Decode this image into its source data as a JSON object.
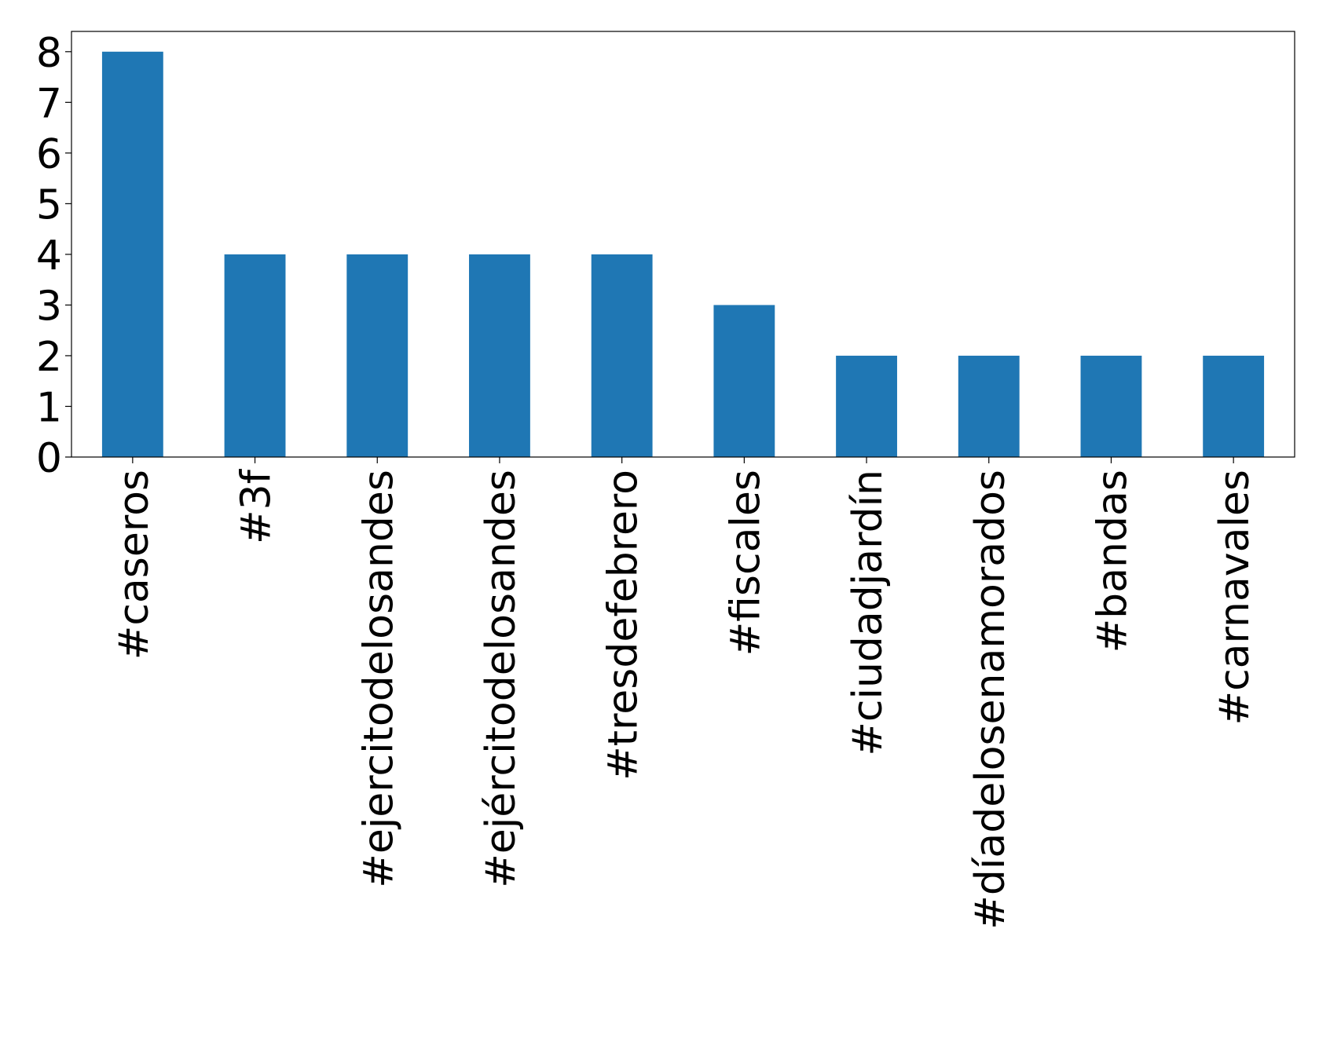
{
  "chart_data": {
    "type": "bar",
    "categories": [
      "#caseros",
      "#3f",
      "#ejercitodelosandes",
      "#ejércitodelosandes",
      "#tresdefebrero",
      "#fiscales",
      "#ciudadjardín",
      "#díadelosenamorados",
      "#bandas",
      "#carnavales"
    ],
    "values": [
      8,
      4,
      4,
      4,
      4,
      3,
      2,
      2,
      2,
      2
    ],
    "color": "#1f77b4",
    "ylim": [
      0,
      8.4
    ],
    "yticks": [
      0,
      1,
      2,
      3,
      4,
      5,
      6,
      7,
      8
    ],
    "grid": false
  }
}
